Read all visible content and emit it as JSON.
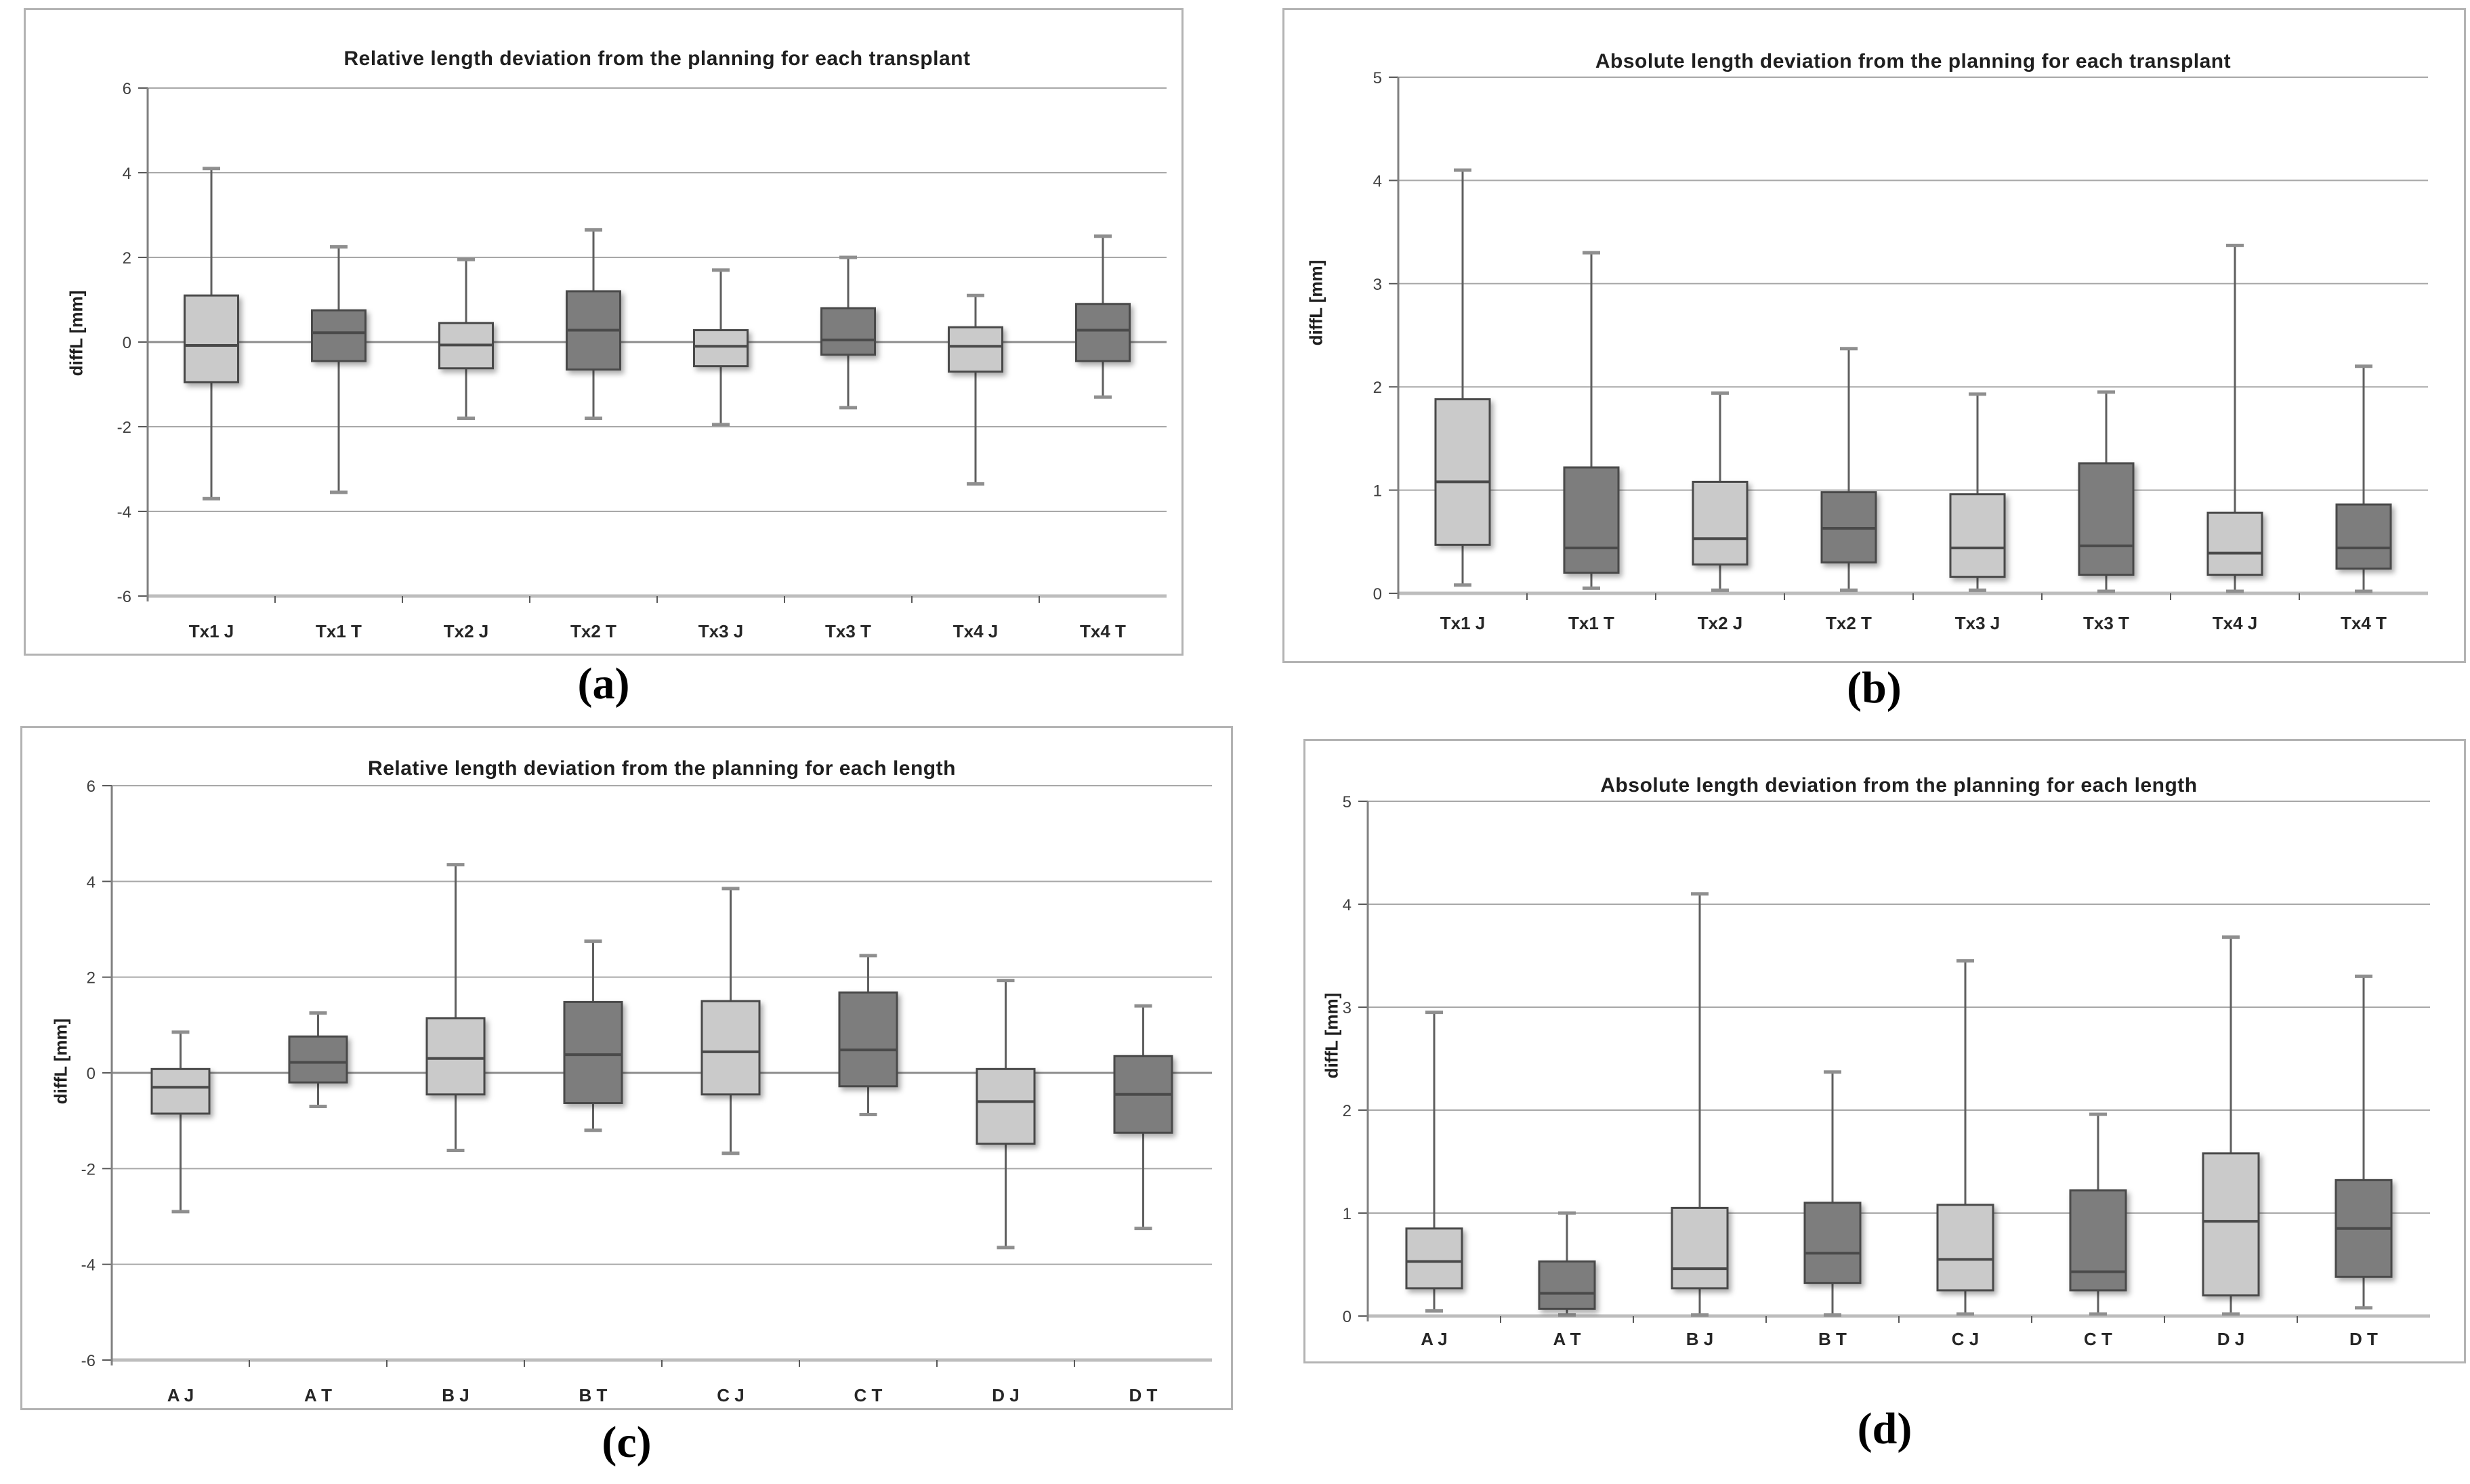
{
  "figure": {
    "background": "#ffffff"
  },
  "colors": {
    "box_light": "#cacaca",
    "box_dark": "#7d7d7d",
    "box_border": "#4a4a4a",
    "median": "#4a4a4a",
    "whisker": "#5f5f5f",
    "whisker_cap": "#8f8f8f",
    "gridline": "#a8a8a8",
    "zero_gridline": "#8c8c8c",
    "bottom_axis": "#bdbdbd",
    "y_axis": "#808080",
    "tick": "#595959",
    "tick_label": "#3f3f3f",
    "category_label": "#262626",
    "title": "#1f1f1f",
    "caption": "#000000",
    "frame_border": "#b3b3b3"
  },
  "chart_data": [
    {
      "id": "a",
      "type": "boxplot",
      "caption": "(a)",
      "title": "Relative length deviation from the planning for each transplant",
      "ylabel": "diffL [mm]",
      "ylim": [
        -6,
        6
      ],
      "ytick_step": 2,
      "grid": true,
      "legend": "none",
      "categories": [
        "Tx1 J",
        "Tx1 T",
        "Tx2 J",
        "Tx2 T",
        "Tx3 J",
        "Tx3 T",
        "Tx4 J",
        "Tx4 T"
      ],
      "boxes": [
        {
          "category": "Tx1 J",
          "shade": "light",
          "whisker_low": -3.7,
          "q1": -0.95,
          "median": -0.08,
          "q3": 1.1,
          "whisker_high": 4.1
        },
        {
          "category": "Tx1 T",
          "shade": "dark",
          "whisker_low": -3.55,
          "q1": -0.45,
          "median": 0.22,
          "q3": 0.75,
          "whisker_high": 2.25
        },
        {
          "category": "Tx2 J",
          "shade": "light",
          "whisker_low": -1.8,
          "q1": -0.62,
          "median": -0.07,
          "q3": 0.45,
          "whisker_high": 1.95
        },
        {
          "category": "Tx2 T",
          "shade": "dark",
          "whisker_low": -1.8,
          "q1": -0.65,
          "median": 0.28,
          "q3": 1.2,
          "whisker_high": 2.65
        },
        {
          "category": "Tx3 J",
          "shade": "light",
          "whisker_low": -1.95,
          "q1": -0.57,
          "median": -0.1,
          "q3": 0.28,
          "whisker_high": 1.7
        },
        {
          "category": "Tx3 T",
          "shade": "dark",
          "whisker_low": -1.55,
          "q1": -0.3,
          "median": 0.05,
          "q3": 0.8,
          "whisker_high": 2.0
        },
        {
          "category": "Tx4 J",
          "shade": "light",
          "whisker_low": -3.35,
          "q1": -0.7,
          "median": -0.1,
          "q3": 0.35,
          "whisker_high": 1.1
        },
        {
          "category": "Tx4 T",
          "shade": "dark",
          "whisker_low": -1.3,
          "q1": -0.45,
          "median": 0.28,
          "q3": 0.9,
          "whisker_high": 2.5
        }
      ]
    },
    {
      "id": "b",
      "type": "boxplot",
      "caption": "(b)",
      "title": "Absolute length deviation from the planning for each transplant",
      "ylabel": "diffL [mm]",
      "ylim": [
        0,
        5
      ],
      "ytick_step": 1,
      "grid": true,
      "legend": "none",
      "categories": [
        "Tx1 J",
        "Tx1 T",
        "Tx2 J",
        "Tx2 T",
        "Tx3 J",
        "Tx3 T",
        "Tx4 J",
        "Tx4 T"
      ],
      "boxes": [
        {
          "category": "Tx1 J",
          "shade": "light",
          "whisker_low": 0.08,
          "q1": 0.47,
          "median": 1.08,
          "q3": 1.88,
          "whisker_high": 4.1
        },
        {
          "category": "Tx1 T",
          "shade": "dark",
          "whisker_low": 0.05,
          "q1": 0.2,
          "median": 0.44,
          "q3": 1.22,
          "whisker_high": 3.3
        },
        {
          "category": "Tx2 J",
          "shade": "light",
          "whisker_low": 0.03,
          "q1": 0.28,
          "median": 0.53,
          "q3": 1.08,
          "whisker_high": 1.94
        },
        {
          "category": "Tx2 T",
          "shade": "dark",
          "whisker_low": 0.03,
          "q1": 0.3,
          "median": 0.63,
          "q3": 0.98,
          "whisker_high": 2.37
        },
        {
          "category": "Tx3 J",
          "shade": "light",
          "whisker_low": 0.03,
          "q1": 0.16,
          "median": 0.44,
          "q3": 0.96,
          "whisker_high": 1.93
        },
        {
          "category": "Tx3 T",
          "shade": "dark",
          "whisker_low": 0.02,
          "q1": 0.18,
          "median": 0.46,
          "q3": 1.26,
          "whisker_high": 1.95
        },
        {
          "category": "Tx4 J",
          "shade": "light",
          "whisker_low": 0.02,
          "q1": 0.18,
          "median": 0.39,
          "q3": 0.78,
          "whisker_high": 3.37
        },
        {
          "category": "Tx4 T",
          "shade": "dark",
          "whisker_low": 0.02,
          "q1": 0.24,
          "median": 0.44,
          "q3": 0.86,
          "whisker_high": 2.2
        }
      ]
    },
    {
      "id": "c",
      "type": "boxplot",
      "caption": "(c)",
      "title": "Relative length deviation from the planning for each length",
      "ylabel": "diffL [mm]",
      "ylim": [
        -6,
        6
      ],
      "ytick_step": 2,
      "grid": true,
      "legend": "none",
      "categories": [
        "A J",
        "A T",
        "B J",
        "B T",
        "C J",
        "C T",
        "D J",
        "D T"
      ],
      "boxes": [
        {
          "category": "A J",
          "shade": "light",
          "whisker_low": -2.9,
          "q1": -0.85,
          "median": -0.3,
          "q3": 0.08,
          "whisker_high": 0.85
        },
        {
          "category": "A T",
          "shade": "dark",
          "whisker_low": -0.7,
          "q1": -0.2,
          "median": 0.22,
          "q3": 0.76,
          "whisker_high": 1.25
        },
        {
          "category": "B J",
          "shade": "light",
          "whisker_low": -1.62,
          "q1": -0.45,
          "median": 0.3,
          "q3": 1.14,
          "whisker_high": 4.35
        },
        {
          "category": "B T",
          "shade": "dark",
          "whisker_low": -1.2,
          "q1": -0.63,
          "median": 0.38,
          "q3": 1.48,
          "whisker_high": 2.75
        },
        {
          "category": "C J",
          "shade": "light",
          "whisker_low": -1.68,
          "q1": -0.45,
          "median": 0.44,
          "q3": 1.5,
          "whisker_high": 3.85
        },
        {
          "category": "C T",
          "shade": "dark",
          "whisker_low": -0.87,
          "q1": -0.28,
          "median": 0.48,
          "q3": 1.68,
          "whisker_high": 2.45
        },
        {
          "category": "D J",
          "shade": "light",
          "whisker_low": -3.65,
          "q1": -1.48,
          "median": -0.6,
          "q3": 0.08,
          "whisker_high": 1.93
        },
        {
          "category": "D T",
          "shade": "dark",
          "whisker_low": -3.25,
          "q1": -1.25,
          "median": -0.45,
          "q3": 0.35,
          "whisker_high": 1.4
        }
      ]
    },
    {
      "id": "d",
      "type": "boxplot",
      "caption": "(d)",
      "title": "Absolute length deviation from the planning for each length",
      "ylabel": "diffL [mm]",
      "ylim": [
        0,
        5
      ],
      "ytick_step": 1,
      "grid": true,
      "legend": "none",
      "categories": [
        "A J",
        "A T",
        "B J",
        "B T",
        "C J",
        "C T",
        "D J",
        "D T"
      ],
      "boxes": [
        {
          "category": "A J",
          "shade": "light",
          "whisker_low": 0.05,
          "q1": 0.27,
          "median": 0.53,
          "q3": 0.85,
          "whisker_high": 2.95
        },
        {
          "category": "A T",
          "shade": "dark",
          "whisker_low": 0.01,
          "q1": 0.07,
          "median": 0.22,
          "q3": 0.53,
          "whisker_high": 1.0
        },
        {
          "category": "B J",
          "shade": "light",
          "whisker_low": 0.01,
          "q1": 0.27,
          "median": 0.46,
          "q3": 1.05,
          "whisker_high": 4.1
        },
        {
          "category": "B T",
          "shade": "dark",
          "whisker_low": 0.01,
          "q1": 0.32,
          "median": 0.61,
          "q3": 1.1,
          "whisker_high": 2.37
        },
        {
          "category": "C J",
          "shade": "light",
          "whisker_low": 0.02,
          "q1": 0.25,
          "median": 0.55,
          "q3": 1.08,
          "whisker_high": 3.45
        },
        {
          "category": "C T",
          "shade": "dark",
          "whisker_low": 0.02,
          "q1": 0.25,
          "median": 0.43,
          "q3": 1.22,
          "whisker_high": 1.96
        },
        {
          "category": "D J",
          "shade": "light",
          "whisker_low": 0.02,
          "q1": 0.2,
          "median": 0.92,
          "q3": 1.58,
          "whisker_high": 3.68
        },
        {
          "category": "D T",
          "shade": "dark",
          "whisker_low": 0.08,
          "q1": 0.38,
          "median": 0.85,
          "q3": 1.32,
          "whisker_high": 3.3
        }
      ]
    }
  ]
}
